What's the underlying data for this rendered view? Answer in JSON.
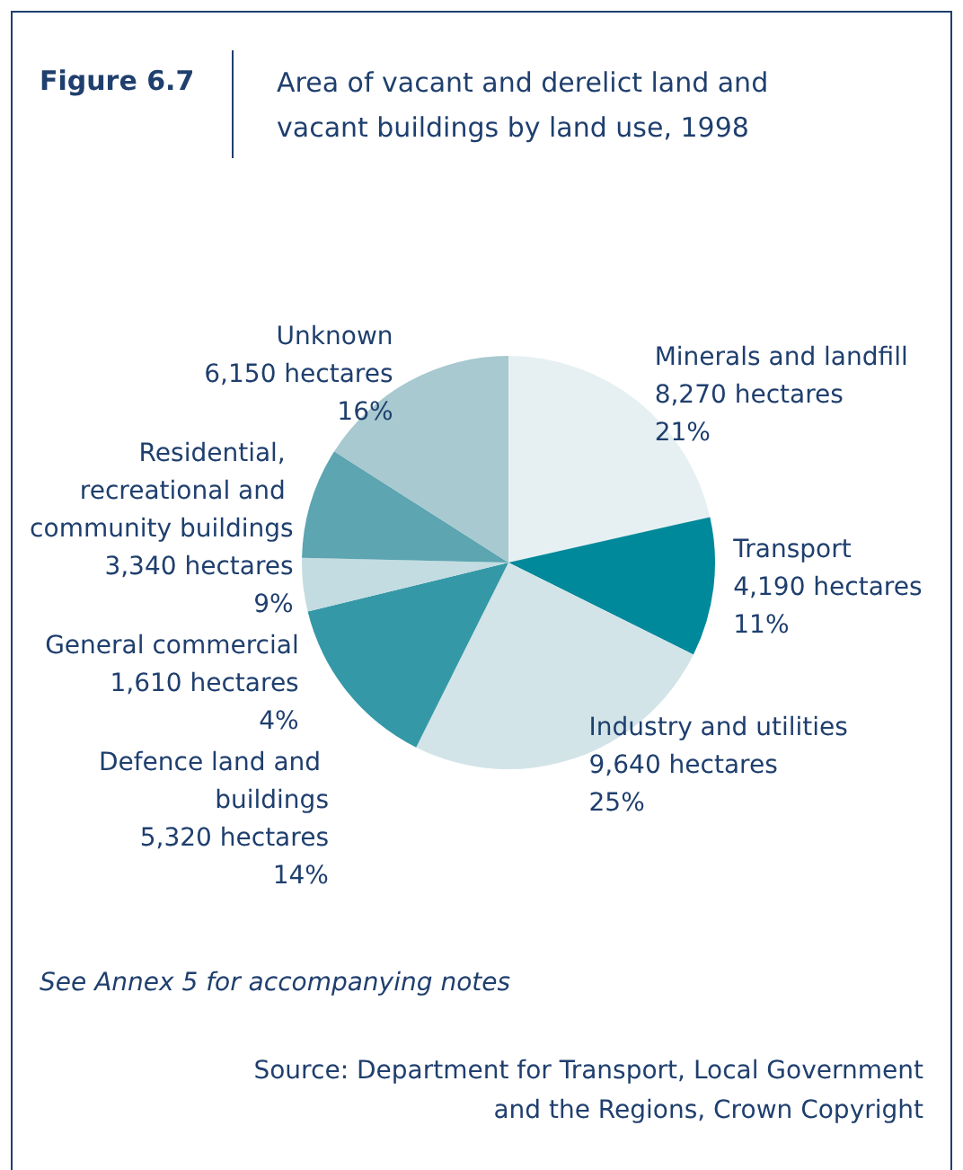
{
  "chart_data": {
    "type": "pie",
    "title": "Figure 6.7",
    "subtitle": "Area of vacant and derelict land and vacant buildings by land use, 1998",
    "categories": [
      "Minerals and landfill",
      "Transport",
      "Industry and utilities",
      "Defence land and buildings",
      "General commercial",
      "Residential, recreational and community buildings",
      "Unknown"
    ],
    "values": [
      8270,
      4190,
      9640,
      5320,
      1610,
      3340,
      6150
    ],
    "value_labels": [
      "8,270 hectares\n21%",
      "4,190 hectares\n11%",
      "9,640 hectares\n25%",
      "5,320 hectares\n14%",
      "1,610 hectares\n4%",
      "3,340 hectares\n9%",
      "6,150 hectares\n16%"
    ],
    "colors": [
      "#e6f0f2",
      "#00899a",
      "#d3e4e8",
      "#3598a7",
      "#c3dce1",
      "#5ca5b1",
      "#a7c9cf"
    ],
    "annotations": [
      "See Annex 5 for accompanying notes",
      "Source: Department for Transport, Local Government and the Regions, Crown Copyright"
    ],
    "legend": false
  }
}
